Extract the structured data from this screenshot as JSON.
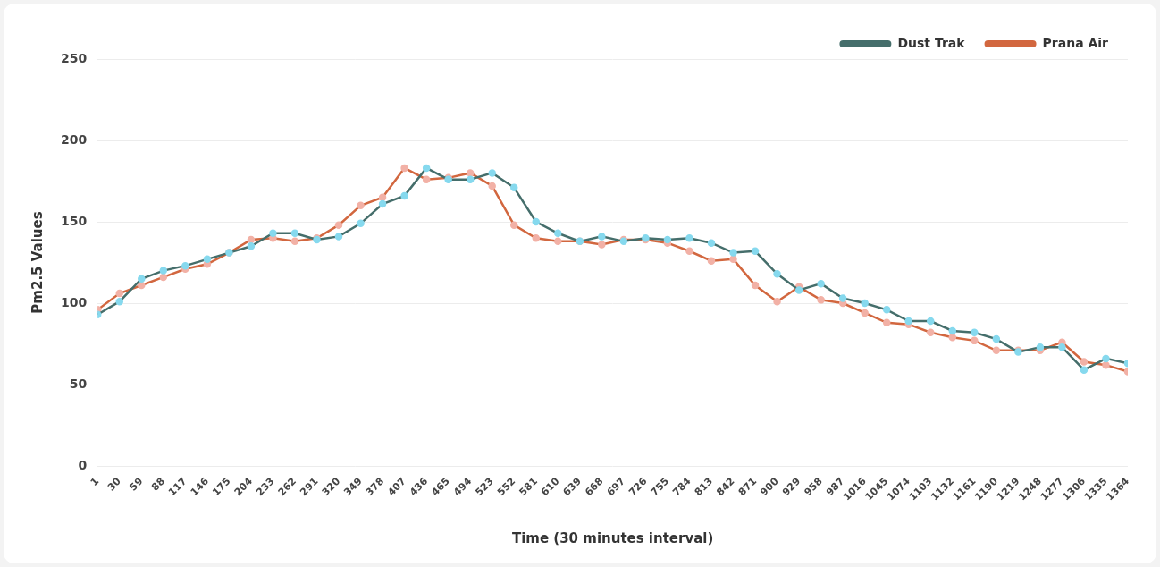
{
  "chart_data": {
    "type": "line",
    "x_label": "Time (30 minutes interval)",
    "y_label": "Pm2.5 Values",
    "categories": [
      1,
      30,
      59,
      88,
      117,
      146,
      175,
      204,
      233,
      262,
      291,
      320,
      349,
      378,
      407,
      436,
      465,
      494,
      523,
      552,
      581,
      610,
      639,
      668,
      697,
      726,
      755,
      784,
      813,
      842,
      871,
      900,
      929,
      958,
      987,
      1016,
      1045,
      1074,
      1103,
      1132,
      1161,
      1190,
      1219,
      1248,
      1277,
      1306,
      1335,
      1364
    ],
    "series": [
      {
        "name": "Dust Trak",
        "color": "#456e6b",
        "marker": "circle",
        "values": [
          93,
          101,
          115,
          120,
          123,
          127,
          131,
          135,
          143,
          143,
          139,
          141,
          149,
          161,
          166,
          183,
          176,
          176,
          180,
          171,
          150,
          143,
          138,
          141,
          138,
          140,
          139,
          140,
          137,
          131,
          132,
          118,
          108,
          112,
          103,
          100,
          96,
          89,
          89,
          83,
          82,
          78,
          70,
          73,
          73,
          59,
          66,
          63
        ]
      },
      {
        "name": "Prana Air",
        "color": "#d2673f",
        "marker": "circle",
        "values": [
          96,
          106,
          111,
          116,
          121,
          124,
          131,
          139,
          140,
          138,
          140,
          148,
          160,
          165,
          183,
          176,
          177,
          180,
          172,
          148,
          140,
          138,
          138,
          136,
          139,
          139,
          137,
          132,
          126,
          127,
          111,
          101,
          110,
          102,
          100,
          94,
          88,
          87,
          82,
          79,
          77,
          71,
          71,
          71,
          76,
          64,
          62,
          58
        ]
      }
    ],
    "ylim": [
      0,
      250
    ],
    "yticks": [
      0,
      50,
      100,
      150,
      200,
      250
    ],
    "grid": true,
    "legend": "top-right"
  }
}
